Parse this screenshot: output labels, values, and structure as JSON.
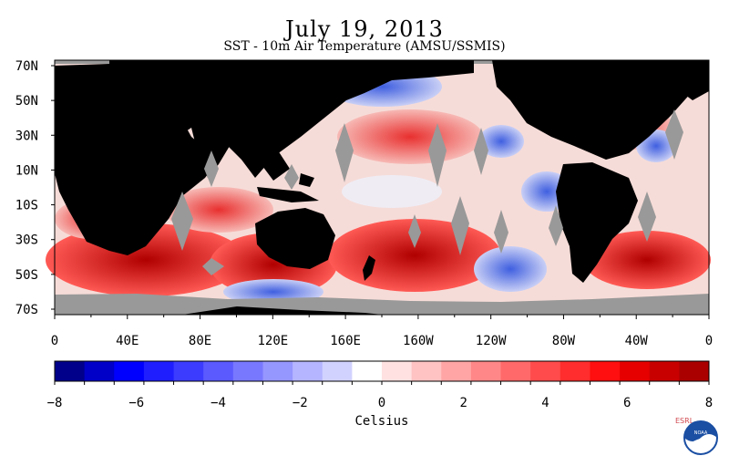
{
  "title": "July 19, 2013",
  "subtitle": "SST - 10m Air Temperature (AMSU/SSMIS)",
  "map": {
    "lat_ticks": [
      "70N",
      "50N",
      "30N",
      "10N",
      "10S",
      "30S",
      "50S",
      "70S"
    ],
    "lon_ticks": [
      "0",
      "40E",
      "80E",
      "120E",
      "160E",
      "160W",
      "120W",
      "80W",
      "40W",
      "0"
    ],
    "colors": {
      "ocean_warm": "#e33b3b",
      "ocean_cool": "#3b5bd9",
      "land": "#000000",
      "missing": "#999999"
    }
  },
  "colorbar": {
    "label": "Celsius",
    "min": -8,
    "max": 8,
    "tick_labels": [
      "−8",
      "−6",
      "−4",
      "−2",
      "0",
      "2",
      "4",
      "6",
      "8"
    ],
    "colors": [
      "#00008b",
      "#0000c8",
      "#0000ff",
      "#1e1eff",
      "#3c3cff",
      "#5a5aff",
      "#7878ff",
      "#9696ff",
      "#b4b4ff",
      "#d2d2ff",
      "#ffffff",
      "#ffe1e1",
      "#ffc3c3",
      "#ffa5a5",
      "#ff8787",
      "#ff6969",
      "#ff4b4b",
      "#ff2d2d",
      "#ff0f0f",
      "#e60000",
      "#c80000",
      "#aa0000"
    ]
  },
  "logo": {
    "left_letters": "ESRL",
    "right_letters": "PSD",
    "emblem": "NOAA"
  }
}
